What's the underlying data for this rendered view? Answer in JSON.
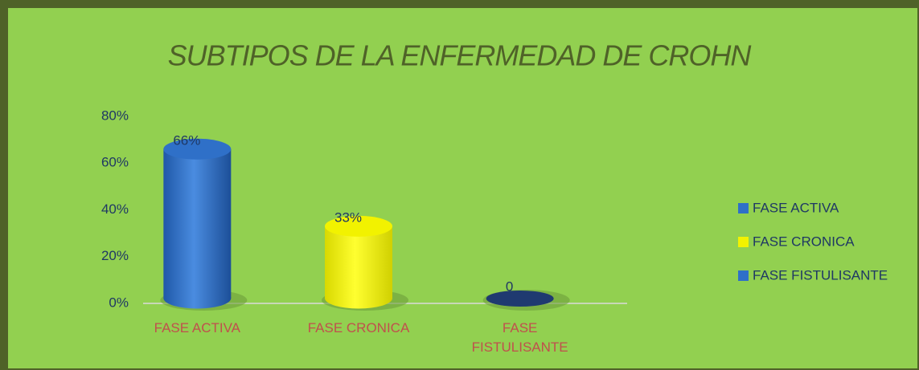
{
  "chart_data": {
    "type": "bar",
    "title": "SUBTIPOS DE LA ENFERMEDAD DE CROHN",
    "categories": [
      "FASE ACTIVA",
      "FASE CRONICA",
      "FASE FISTULISANTE"
    ],
    "values": [
      66,
      33,
      0
    ],
    "value_labels": [
      "66%",
      "33%",
      "0"
    ],
    "colors": [
      "#2f70c8",
      "#f2f200",
      "#2f70c8"
    ],
    "ylim": [
      0,
      80
    ],
    "yticks": [
      {
        "value": 0,
        "label": "0%"
      },
      {
        "value": 20,
        "label": "20%"
      },
      {
        "value": 40,
        "label": "40%"
      },
      {
        "value": 60,
        "label": "60%"
      },
      {
        "value": 80,
        "label": "80%"
      }
    ],
    "legend": "right"
  }
}
